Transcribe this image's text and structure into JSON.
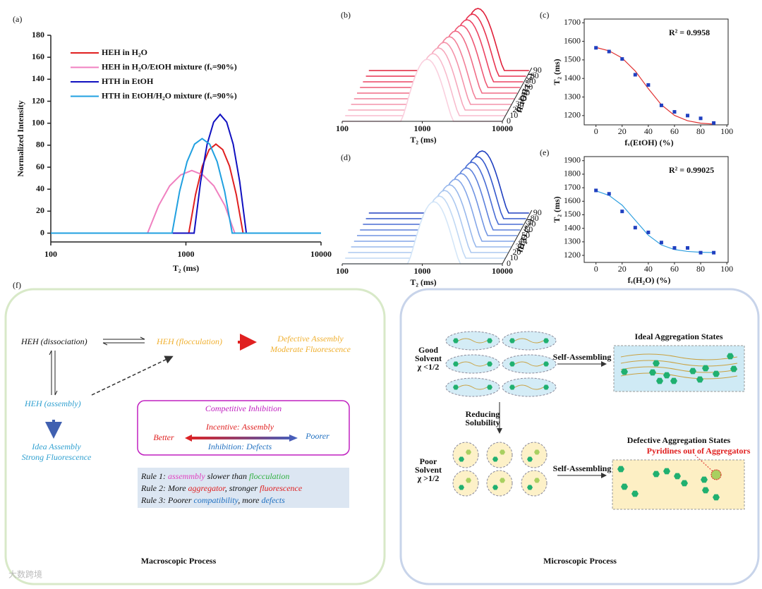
{
  "chart_data": [
    {
      "type": "line",
      "label": "(a)",
      "xlabel": "T₂ (ms)",
      "ylabel": "Normalized Intensity",
      "xscale": "log",
      "xlim": [
        100,
        10000
      ],
      "xticks": [
        100,
        1000,
        10000
      ],
      "ylim": [
        -8,
        180
      ],
      "yticks": [
        0,
        20,
        40,
        60,
        80,
        100,
        120,
        140,
        160,
        180
      ],
      "legend": "upper left",
      "series": [
        {
          "name": "HEH in H₂O",
          "color": "#e02020",
          "x": [
            100,
            1050,
            1178,
            1323,
            1485,
            1667,
            1873,
            2102,
            2360,
            2649,
            10000
          ],
          "values": [
            0,
            0,
            35,
            61,
            76,
            81,
            76,
            61,
            35,
            0,
            0
          ]
        },
        {
          "name": "HEH in H₂O/EtOH mixture (fᵥ=90%)",
          "color": "#f080c0",
          "x": [
            100,
            520,
            628,
            758,
            915,
            1105,
            1334,
            1610,
            1944,
            2301,
            10000
          ],
          "values": [
            0,
            0,
            25,
            43,
            53,
            57,
            53,
            43,
            25,
            0,
            0
          ]
        },
        {
          "name": "HTH in EtOH",
          "color": "#1010c0",
          "x": [
            100,
            1150,
            1285,
            1436,
            1604,
            1792,
            2003,
            2238,
            2500,
            2800,
            10000
          ],
          "values": [
            0,
            0,
            47,
            81,
            101,
            108,
            101,
            81,
            47,
            0,
            0
          ]
        },
        {
          "name": "HTH in EtOH/H₂O mixture (fᵥ=90%)",
          "color": "#20a0e0",
          "x": [
            100,
            790,
            898,
            1020,
            1159,
            1318,
            1498,
            1703,
            1935,
            2200,
            10000
          ],
          "values": [
            0,
            0,
            38,
            65,
            81,
            86,
            81,
            65,
            38,
            0,
            0
          ]
        }
      ]
    },
    {
      "type": "waterfall",
      "label": "(b)",
      "xlabel": "T₂ (ms)",
      "zlabel": "fEtOH (%)",
      "xscale": "log",
      "xlim": [
        100,
        10000
      ],
      "xticks": [
        100,
        1000,
        10000
      ],
      "zticks": [
        0,
        10,
        20,
        30,
        40,
        50,
        60,
        70,
        80,
        90
      ],
      "peaks": [
        1150,
        1250,
        1350,
        1450,
        1550,
        1700,
        1850,
        2000,
        2150,
        2300
      ],
      "colors": [
        "#fad0de",
        "#f8bccd",
        "#f6a8bc",
        "#f494aa",
        "#f28098",
        "#f06c86",
        "#ee5874",
        "#ec4462",
        "#e83450",
        "#e0203a"
      ]
    },
    {
      "type": "scatter",
      "label": "(c)",
      "xlabel": "fᵥ(EtOH) (%)",
      "ylabel": "T₂ (ms)",
      "annotation": "R² = 0.9958",
      "xlim": [
        -9,
        101
      ],
      "xticks": [
        0,
        20,
        40,
        60,
        80,
        100
      ],
      "ylim": [
        1150,
        1720
      ],
      "yticks": [
        1200,
        1300,
        1400,
        1500,
        1600,
        1700
      ],
      "x": [
        0,
        10,
        20,
        30,
        40,
        50,
        60,
        70,
        80,
        90
      ],
      "values": [
        1565,
        1545,
        1505,
        1420,
        1365,
        1255,
        1220,
        1200,
        1185,
        1160
      ],
      "color": "#2040c0",
      "fit": {
        "x": [
          0,
          10,
          20,
          30,
          40,
          50,
          60,
          70,
          80,
          90
        ],
        "values": [
          1567,
          1549,
          1510,
          1440,
          1345,
          1258,
          1201,
          1172,
          1159,
          1154
        ],
        "color": "#e03030"
      }
    },
    {
      "type": "waterfall",
      "label": "(d)",
      "xlabel": "T₂ (ms)",
      "zlabel": "fH₂O (%)",
      "xscale": "log",
      "xlim": [
        100,
        10000
      ],
      "xticks": [
        100,
        1000,
        10000
      ],
      "zticks": [
        0,
        10,
        20,
        30,
        40,
        50,
        60,
        70,
        80,
        90
      ],
      "peaks": [
        1400,
        1500,
        1600,
        1700,
        1850,
        2000,
        2150,
        2300,
        2450,
        2600
      ],
      "colors": [
        "#d4e6f8",
        "#c0d8f4",
        "#acc8f0",
        "#98b8ec",
        "#84a6e8",
        "#7094e2",
        "#5c80dc",
        "#486cd4",
        "#3458cc",
        "#2040c0"
      ]
    },
    {
      "type": "scatter",
      "label": "(e)",
      "xlabel": "fᵥ(H₂O) (%)",
      "ylabel": "T₂ (ms)",
      "annotation": "R² = 0.99025",
      "xlim": [
        -9,
        101
      ],
      "xticks": [
        0,
        20,
        40,
        60,
        80,
        100
      ],
      "ylim": [
        1148,
        1930
      ],
      "yticks": [
        1200,
        1300,
        1400,
        1500,
        1600,
        1700,
        1800,
        1900
      ],
      "x": [
        0,
        10,
        20,
        30,
        40,
        50,
        60,
        70,
        80,
        90
      ],
      "values": [
        1680,
        1655,
        1525,
        1405,
        1370,
        1295,
        1255,
        1255,
        1220,
        1220
      ],
      "color": "#2040c0",
      "fit": {
        "x": [
          0,
          10,
          20,
          30,
          40,
          50,
          60,
          70,
          80,
          90
        ],
        "values": [
          1677,
          1643,
          1571,
          1460,
          1349,
          1277,
          1243,
          1229,
          1223,
          1221
        ],
        "color": "#30a0e0"
      }
    }
  ],
  "diagram": {
    "label": "(f)",
    "macro": {
      "dissociation": "HEH (dissociation)",
      "flocculation": "HEH (flocculation)",
      "defective": [
        "Defective Assembly",
        "Moderate Fluorescence"
      ],
      "assembly": "HEH (assembly)",
      "ideal": [
        "Idea Assembly",
        "Strong Fluorescence"
      ],
      "inhibition": {
        "title": "Competitive Inhibition",
        "incentive": "Incentive: Assembly",
        "better": "Better",
        "poorer": "Poorer",
        "defects": "Inhibition: Defects"
      },
      "rules": [
        {
          "parts": [
            "Rule 1: ",
            "assemmbly",
            " slower than ",
            "flocculation"
          ],
          "colors": [
            "#111111",
            "#e040c0",
            "#111111",
            "#30b040"
          ]
        },
        {
          "parts": [
            "Rule 2: More ",
            "aggregator",
            ", stronger ",
            "fluorescence"
          ],
          "colors": [
            "#111111",
            "#e02020",
            "#111111",
            "#e02020"
          ]
        },
        {
          "parts": [
            "Rule 3: Poorer ",
            "compatibility",
            ", more ",
            "defects"
          ],
          "colors": [
            "#111111",
            "#2070c0",
            "#111111",
            "#2070c0"
          ]
        }
      ],
      "title": "Macroscopic Process"
    },
    "micro": {
      "good": [
        "Good",
        "Solvent",
        "χ <1/2"
      ],
      "self1": "Self-Assembling",
      "ideal": "Ideal Aggregation States",
      "reducing": [
        "Reducing",
        "Solubility"
      ],
      "poor": [
        "Poor",
        "Solvent",
        "χ >1/2"
      ],
      "self2": "Self-Assembling",
      "defective": "Defective Aggregation States",
      "pyridines": "Pyridines out of Aggregators",
      "title": "Microscopic Process"
    }
  },
  "watermark": "大数跨境"
}
